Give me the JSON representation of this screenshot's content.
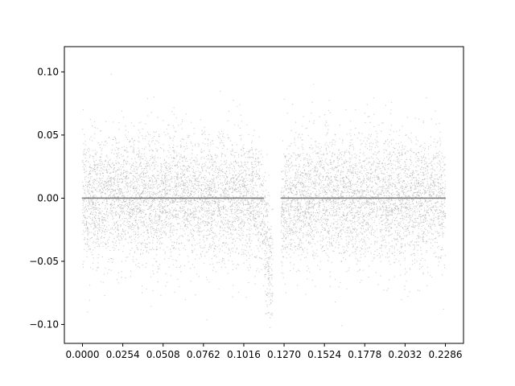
{
  "chart_data": {
    "type": "scatter",
    "title": "",
    "xlabel": "",
    "ylabel": "",
    "xlim": [
      -0.0114,
      0.24
    ],
    "ylim": [
      -0.115,
      0.12
    ],
    "x_ticks": [
      0.0,
      0.0254,
      0.0508,
      0.0762,
      0.1016,
      0.127,
      0.1524,
      0.1778,
      0.2032,
      0.2286
    ],
    "x_tick_labels": [
      "0.0000",
      "0.0254",
      "0.0508",
      "0.0762",
      "0.1016",
      "0.1270",
      "0.1524",
      "0.1778",
      "0.2032",
      "0.2286"
    ],
    "y_ticks": [
      -0.1,
      -0.05,
      0.0,
      0.05,
      0.1
    ],
    "y_tick_labels": [
      "−0.10",
      "−0.05",
      "0.00",
      "0.05",
      "0.10"
    ],
    "grid": false,
    "legend": "none",
    "series": [
      {
        "kind": "noisy-observations",
        "color": "#a0a0a0",
        "marker": "tiny-dot",
        "x_range": [
          0.0,
          0.2286
        ],
        "noise_sd": 0.025,
        "observation_gap": [
          0.12,
          0.125
        ],
        "dip": {
          "center_x": 0.1195,
          "depth": -0.06,
          "halfwidth": 0.0035
        },
        "approx_point_count": 9000
      },
      {
        "kind": "model-fit",
        "color": "#808080",
        "marker": "tiny-dot",
        "x_range": [
          0.0,
          0.2286
        ],
        "y_value": 0.0,
        "observation_gap": [
          0.114,
          0.125
        ]
      }
    ],
    "colors": {
      "axes": "#000000",
      "background": "#ffffff",
      "points": "#a0a0a0",
      "model": "#808080"
    }
  }
}
